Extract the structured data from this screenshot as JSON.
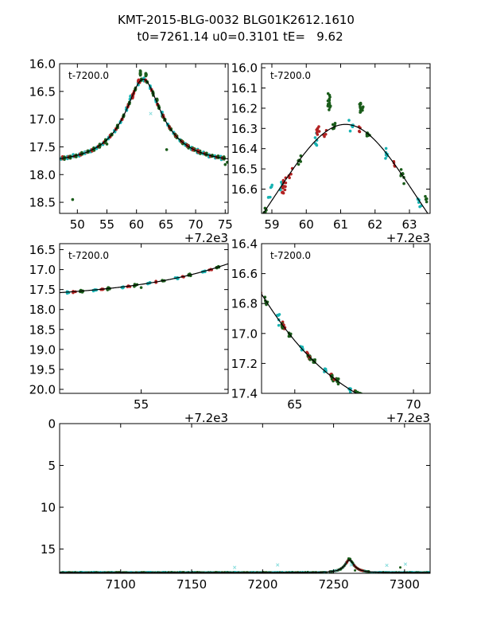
{
  "title_line1": "KMT-2015-BLG-0032 BLG01K2612.1610",
  "title_line2": "t0=7261.14 u0=0.3101 tE=   9.62",
  "model": {
    "t0": 7261.14,
    "u0": 0.3101,
    "tE": 9.62,
    "base_mag": 17.8,
    "peak_mag": 16.28
  },
  "colors": {
    "green": "#1a5c1a",
    "red": "#b22222",
    "cyan": "#17b3b3",
    "light_cyan": "#7fdada",
    "model": "#000000"
  },
  "chart_data": [
    {
      "id": "p1",
      "type": "scatter",
      "panel_label": "t-7200.0",
      "xlim": [
        47,
        75.5
      ],
      "ylim": [
        18.7,
        16.0
      ],
      "inverted_y": true,
      "xticks": [
        50,
        55,
        60,
        65,
        70,
        75
      ],
      "xtick_labels": [
        "50",
        "55",
        "60",
        "65",
        "70",
        "75"
      ],
      "yticks": [
        16.0,
        16.5,
        17.0,
        17.5,
        18.0,
        18.5
      ],
      "ytick_labels": [
        "16.0",
        "16.5",
        "17.0",
        "17.5",
        "18.0",
        "18.5"
      ],
      "x_offset_label": "+7.2e3",
      "model_range": [
        47,
        75.5
      ]
    },
    {
      "id": "p2",
      "type": "scatter",
      "panel_label": "t-7200.0",
      "xlim": [
        58.7,
        63.6
      ],
      "ylim": [
        16.72,
        15.98
      ],
      "inverted_y": true,
      "xticks": [
        59,
        60,
        61,
        62,
        63
      ],
      "xtick_labels": [
        "59",
        "60",
        "61",
        "62",
        "63"
      ],
      "yticks": [
        16.0,
        16.1,
        16.2,
        16.3,
        16.4,
        16.5,
        16.6
      ],
      "ytick_labels": [
        "16.0",
        "16.1",
        "16.2",
        "16.3",
        "16.4",
        "16.5",
        "16.6"
      ],
      "x_offset_label": "+7.2e3",
      "model_range": [
        58.7,
        63.6
      ]
    },
    {
      "id": "p3",
      "type": "scatter",
      "panel_label": "t-7200.0",
      "xlim": [
        52.0,
        58.2
      ],
      "ylim": [
        20.1,
        16.35
      ],
      "inverted_y": true,
      "xticks": [
        55
      ],
      "xtick_labels": [
        "55"
      ],
      "yticks": [
        16.5,
        17.0,
        17.5,
        18.0,
        18.5,
        19.0,
        19.5,
        20.0
      ],
      "ytick_labels": [
        "16.5",
        "17.0",
        "17.5",
        "18.0",
        "18.5",
        "19.0",
        "19.5",
        "20.0"
      ],
      "x_offset_label": "+7.2e3",
      "model_range": [
        52.0,
        58.2
      ]
    },
    {
      "id": "p4",
      "type": "scatter",
      "panel_label": "t-7200.0",
      "xlim": [
        63.6,
        70.7
      ],
      "ylim": [
        17.4,
        16.4
      ],
      "inverted_y": true,
      "xticks": [
        65,
        70
      ],
      "xtick_labels": [
        "65",
        "70"
      ],
      "yticks": [
        16.4,
        16.6,
        16.8,
        17.0,
        17.2,
        17.4
      ],
      "ytick_labels": [
        "16.4",
        "16.6",
        "16.8",
        "17.0",
        "17.2",
        "17.4"
      ],
      "x_offset_label": "+7.2e3",
      "model_range": [
        63.6,
        70.7
      ]
    },
    {
      "id": "p5",
      "type": "scatter",
      "panel_label": "",
      "xlim": [
        7057,
        7318
      ],
      "ylim": [
        17.9,
        0
      ],
      "inverted_y": true,
      "xticks": [
        7100,
        7150,
        7200,
        7250,
        7300
      ],
      "xtick_labels": [
        "7100",
        "7150",
        "7200",
        "7250",
        "7300"
      ],
      "yticks": [
        0,
        5,
        10,
        15
      ],
      "ytick_labels": [
        "0",
        "5",
        "10",
        "15"
      ],
      "x_offset_label": "",
      "model_range": [
        7057,
        7318
      ]
    }
  ]
}
